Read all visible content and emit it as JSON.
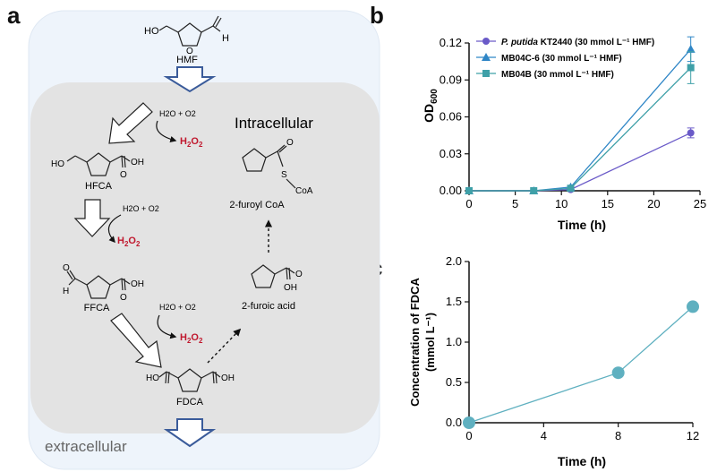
{
  "panels": {
    "a": "a",
    "b": "b",
    "c": "c"
  },
  "diagram": {
    "intracellular_label": "Intracellular",
    "extracellular_label": "extracellular",
    "cofactor": "H2O + O2",
    "h2o2_main": "H",
    "h2o2_sub1": "2",
    "h2o2_sub2": "2",
    "h2o2_O": "O",
    "ho": "HO",
    "h": "H",
    "oh": "OH",
    "s": "S",
    "coa": "CoA",
    "compounds": {
      "hmf": "HMF",
      "hfca": "HFCA",
      "ffca": "FFCA",
      "fdca": "FDCA",
      "furoic": "2-furoic acid",
      "furoyl_coa": "2-furoyl CoA"
    },
    "colors": {
      "h2o2": "#c0182e",
      "arrow_blue": "#3a5b9a",
      "inner_box": "#e3e3e3",
      "outer_box": "#eef4fb"
    }
  },
  "chart_data": [
    {
      "type": "line",
      "panel": "b",
      "ylabel_main": "OD",
      "ylabel_sub": "600",
      "xlabel": "Time (h)",
      "xlim": [
        0,
        25
      ],
      "ylim": [
        0,
        0.12
      ],
      "xticks": [
        0,
        5,
        10,
        15,
        20,
        25
      ],
      "yticks": [
        "0.00",
        "0.03",
        "0.06",
        "0.09",
        "0.12"
      ],
      "ytick_values": [
        0,
        0.03,
        0.06,
        0.09,
        0.12
      ],
      "legend_position": "top-left",
      "series": [
        {
          "legend_strain": "P. putida",
          "legend_rest": " KT2440 (30 mmol L⁻¹ HMF)",
          "color": "#6a5ac8",
          "marker": "circle",
          "x": [
            0,
            7,
            11,
            24
          ],
          "y": [
            0,
            0,
            0.001,
            0.047
          ],
          "err": [
            0,
            0,
            0,
            0.004
          ]
        },
        {
          "legend_strain": "",
          "legend_rest": "MB04C-6  (30 mmol L⁻¹ HMF)",
          "color": "#2f86c6",
          "marker": "triangle",
          "x": [
            0,
            7,
            11,
            24
          ],
          "y": [
            0,
            0,
            0.003,
            0.115
          ],
          "err": [
            0,
            0,
            0,
            0.01
          ]
        },
        {
          "legend_strain": "",
          "legend_rest": "MB04B (30 mmol L⁻¹ HMF)",
          "color": "#3fa0a8",
          "marker": "square",
          "x": [
            0,
            7,
            11,
            24
          ],
          "y": [
            0,
            0,
            0.002,
            0.1
          ],
          "err": [
            0,
            0,
            0,
            0.013
          ]
        }
      ]
    },
    {
      "type": "line",
      "panel": "c",
      "ylabel_line1": "Concentration of FDCA",
      "ylabel_line2": "(mmol L⁻¹)",
      "xlabel": "Time (h)",
      "xlim": [
        0,
        12
      ],
      "ylim": [
        0,
        2.0
      ],
      "xticks": [
        0,
        4,
        8,
        12
      ],
      "yticks": [
        "0.0",
        "0.5",
        "1.0",
        "1.5",
        "2.0"
      ],
      "ytick_values": [
        0,
        0.5,
        1.0,
        1.5,
        2.0
      ],
      "series": [
        {
          "color": "#5fb0c0",
          "marker": "circle",
          "x": [
            0,
            8,
            12
          ],
          "y": [
            0,
            0.62,
            1.44
          ]
        }
      ]
    }
  ]
}
